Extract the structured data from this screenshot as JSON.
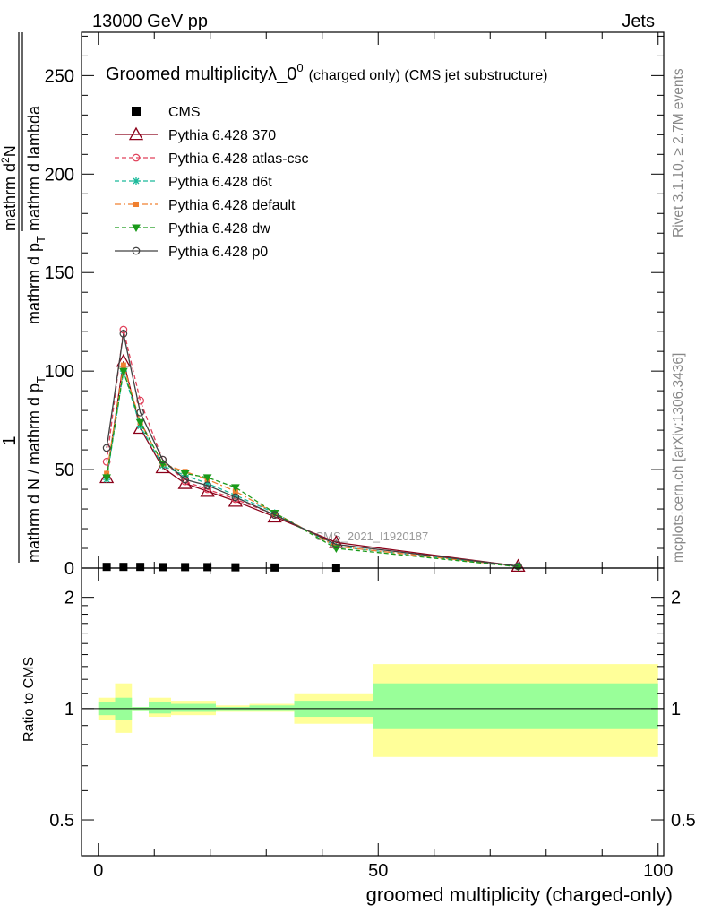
{
  "header": {
    "left": "13000 GeV pp",
    "right": "Jets"
  },
  "side_labels": {
    "rivet": "Rivet 3.1.10, ≥ 2.7M events",
    "mcplots": "mcplots.cern.ch [arXiv:1306.3436]"
  },
  "chart_data": [
    {
      "type": "line",
      "title_main": "Groomed multiplicity",
      "title_lambda": "λ_0",
      "title_sup": "0",
      "title_suffix": "(charged only) (CMS jet substructure)",
      "ylabel_parts": {
        "one": "1",
        "denominator": "mathrm d N / mathrm d p",
        "denominator_sub": "T",
        "numerator": "mathrm d",
        "numerator_sup": "2",
        "numerator_tail": "N",
        "denominator2": "mathrm d p",
        "denominator2_sub": "T",
        "denominator2_tail": " mathrm d lambda"
      },
      "watermark": "CMS_2021_I1920187",
      "xlim": [
        -3,
        101
      ],
      "ylim": [
        0,
        272
      ],
      "yticks": [
        0,
        50,
        100,
        150,
        200,
        250
      ],
      "ytick_labels": [
        "0",
        "50",
        "100",
        "150",
        "200",
        "250"
      ],
      "legend_position": "top-left",
      "data_series": {
        "name": "CMS",
        "color": "#000000",
        "x": [
          1.5,
          4.5,
          7.5,
          11.5,
          15.5,
          19.5,
          24.5,
          31.5,
          42.5
        ],
        "y": [
          0.6,
          0.6,
          0.6,
          0.5,
          0.5,
          0.5,
          0.4,
          0.3,
          0.2
        ]
      },
      "series": [
        {
          "name": "Pythia 6.428 370",
          "color": "#8b0019",
          "marker": "triangle-open",
          "dash": "solid",
          "x": [
            1.5,
            4.5,
            7.5,
            11.5,
            15.5,
            19.5,
            24.5,
            31.5,
            42.5,
            75
          ],
          "y": [
            46,
            105,
            71,
            51,
            43,
            39,
            34,
            26,
            13,
            1
          ]
        },
        {
          "name": "Pythia 6.428 atlas-csc",
          "color": "#e0405a",
          "marker": "circle-open",
          "dash": "dashed",
          "x": [
            1.5,
            4.5,
            7.5,
            11.5,
            15.5,
            19.5,
            24.5,
            31.5,
            42.5,
            75
          ],
          "y": [
            54,
            121,
            85,
            55,
            44,
            40,
            35,
            27,
            12,
            1
          ]
        },
        {
          "name": "Pythia 6.428 d6t",
          "color": "#1ab99a",
          "marker": "star",
          "dash": "dashed",
          "x": [
            1.5,
            4.5,
            7.5,
            11.5,
            15.5,
            19.5,
            24.5,
            31.5,
            42.5,
            75
          ],
          "y": [
            45,
            100,
            72,
            52,
            47,
            43,
            37,
            28,
            11,
            0.8
          ]
        },
        {
          "name": "Pythia 6.428 default",
          "color": "#f08030",
          "marker": "square",
          "dash": "dashdot",
          "x": [
            1.5,
            4.5,
            7.5,
            11.5,
            15.5,
            19.5,
            24.5,
            31.5,
            42.5,
            75
          ],
          "y": [
            48,
            103,
            74,
            53,
            49,
            45,
            39,
            28,
            11,
            0.8
          ]
        },
        {
          "name": "Pythia 6.428 dw",
          "color": "#1a9a1a",
          "marker": "triangle-down",
          "dash": "dashed",
          "x": [
            1.5,
            4.5,
            7.5,
            11.5,
            15.5,
            19.5,
            24.5,
            31.5,
            42.5,
            75
          ],
          "y": [
            46,
            100,
            74,
            53,
            48,
            46,
            41,
            28,
            10,
            0.7
          ]
        },
        {
          "name": "Pythia 6.428 p0",
          "color": "#404040",
          "marker": "circle-open",
          "dash": "solid",
          "x": [
            1.5,
            4.5,
            7.5,
            11.5,
            15.5,
            19.5,
            24.5,
            31.5,
            42.5,
            75
          ],
          "y": [
            61,
            119,
            79,
            55,
            45,
            42,
            36,
            27,
            12,
            1
          ]
        }
      ]
    },
    {
      "type": "area",
      "ylabel": "Ratio to CMS",
      "xlabel": "groomed multiplicity (charged-only)",
      "xlim": [
        -3,
        101
      ],
      "ylim": [
        0.4,
        2.4
      ],
      "log_y": true,
      "xticks": [
        0,
        50,
        100
      ],
      "xtick_labels": [
        "0",
        "50",
        "100"
      ],
      "yticks": [
        0.5,
        1,
        2
      ],
      "ytick_labels": [
        "0.5",
        "1",
        "2"
      ],
      "bins": [
        {
          "lo": 0,
          "hi": 3,
          "yellow": [
            0.93,
            1.07
          ],
          "green": [
            0.96,
            1.04
          ]
        },
        {
          "lo": 3,
          "hi": 6,
          "yellow": [
            0.86,
            1.17
          ],
          "green": [
            0.93,
            1.07
          ]
        },
        {
          "lo": 6,
          "hi": 9,
          "yellow": [
            0.99,
            1.01
          ],
          "green": [
            0.99,
            1.01
          ]
        },
        {
          "lo": 9,
          "hi": 13,
          "yellow": [
            0.95,
            1.07
          ],
          "green": [
            0.97,
            1.04
          ]
        },
        {
          "lo": 13,
          "hi": 17,
          "yellow": [
            0.96,
            1.05
          ],
          "green": [
            0.98,
            1.03
          ]
        },
        {
          "lo": 17,
          "hi": 21,
          "yellow": [
            0.96,
            1.05
          ],
          "green": [
            0.98,
            1.03
          ]
        },
        {
          "lo": 21,
          "hi": 27,
          "yellow": [
            0.98,
            1.02
          ],
          "green": [
            0.99,
            1.01
          ]
        },
        {
          "lo": 27,
          "hi": 35,
          "yellow": [
            0.98,
            1.03
          ],
          "green": [
            0.99,
            1.02
          ]
        },
        {
          "lo": 35,
          "hi": 49,
          "yellow": [
            0.91,
            1.1
          ],
          "green": [
            0.95,
            1.05
          ]
        },
        {
          "lo": 49,
          "hi": 100,
          "yellow": [
            0.74,
            1.32
          ],
          "green": [
            0.88,
            1.17
          ]
        }
      ]
    }
  ]
}
